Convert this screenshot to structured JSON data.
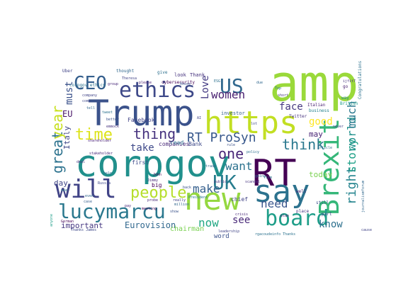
{
  "figure": {
    "type": "word-cloud",
    "background": "#ffffff",
    "palette": "viridis"
  },
  "words": [
    {
      "text": "amp",
      "color": "#9ad93a"
    },
    {
      "text": "Trump",
      "color": "#3b528b"
    },
    {
      "text": "corpgov",
      "color": "#21908c"
    },
    {
      "text": "https",
      "color": "#c2df23"
    },
    {
      "text": "RT",
      "color": "#440154"
    },
    {
      "text": "new",
      "color": "#95d840"
    },
    {
      "text": "say",
      "color": "#2c728e"
    },
    {
      "text": "Brexit",
      "color": "#35b779"
    },
    {
      "text": "will",
      "color": "#414487"
    },
    {
      "text": "lucymarcu",
      "color": "#2a788e"
    },
    {
      "text": "ethics",
      "color": "#3e4989"
    },
    {
      "text": "US",
      "color": "#31688e"
    },
    {
      "text": "CEO",
      "color": "#355f8d"
    },
    {
      "text": "board",
      "color": "#1f9e89"
    },
    {
      "text": "people",
      "color": "#b5de2b"
    },
    {
      "text": "time",
      "color": "#dde318"
    },
    {
      "text": "thing",
      "color": "#46327e"
    },
    {
      "text": "RT ProSyn",
      "color": "#38588c"
    },
    {
      "text": "UK",
      "color": "#287d8e"
    },
    {
      "text": "think",
      "color": "#2a788e"
    },
    {
      "text": "one",
      "color": "#482677"
    },
    {
      "text": "want",
      "color": "#2c728e"
    },
    {
      "text": "women",
      "color": "#481f70"
    },
    {
      "text": "make",
      "color": "#355f8d"
    },
    {
      "text": "now",
      "color": "#22a884"
    },
    {
      "text": "need",
      "color": "#39568c"
    },
    {
      "text": "know",
      "color": "#2d708e"
    },
    {
      "text": "great",
      "color": "#2c728e"
    },
    {
      "text": "year",
      "color": "#c8e020"
    },
    {
      "text": "must",
      "color": "#3b528b"
    },
    {
      "text": "Love",
      "color": "#443a83"
    },
    {
      "text": "take",
      "color": "#3e4989"
    },
    {
      "text": "face",
      "color": "#453781"
    },
    {
      "text": "see",
      "color": "#482878"
    },
    {
      "text": "good",
      "color": "#fde725"
    },
    {
      "text": "right",
      "color": "#25848e"
    },
    {
      "text": "story",
      "color": "#1fa188"
    },
    {
      "text": "world",
      "color": "#21918c"
    },
    {
      "text": "much",
      "color": "#2a788e"
    },
    {
      "text": "Italy",
      "color": "#3f4788"
    },
    {
      "text": "EU",
      "color": "#481467"
    },
    {
      "text": "day",
      "color": "#404688"
    },
    {
      "text": "may",
      "color": "#482475"
    },
    {
      "text": "today",
      "color": "#7ad151"
    },
    {
      "text": "Eurovision",
      "color": "#31688e"
    },
    {
      "text": "important",
      "color": "#453781"
    },
    {
      "text": "chairman",
      "color": "#7ad151"
    },
    {
      "text": "word",
      "color": "#3b528b"
    },
    {
      "text": "companies",
      "color": "#482878"
    },
    {
      "text": "Bank",
      "color": "#3e4989"
    },
    {
      "text": "read",
      "color": "#2e6e8e"
    },
    {
      "text": "chief",
      "color": "#414487"
    },
    {
      "text": "big",
      "color": "#440154"
    },
    {
      "text": "first",
      "color": "#3e4989"
    },
    {
      "text": "Facebook",
      "color": "#414487"
    },
    {
      "text": "investor",
      "color": "#355f8d"
    },
    {
      "text": "look",
      "color": "#46337e"
    },
    {
      "text": "Thank",
      "color": "#46337e"
    },
    {
      "text": "give",
      "color": "#2d708e"
    },
    {
      "text": "Uber",
      "color": "#414487"
    },
    {
      "text": "thought",
      "color": "#31688e"
    },
    {
      "text": "cybersecurity",
      "color": "#440154"
    },
    {
      "text": "corpgov ethics",
      "color": "#2c728e"
    },
    {
      "text": "Congratulations",
      "color": "#2c728e"
    },
    {
      "text": "Twitter",
      "color": "#46327e"
    },
    {
      "text": "Italian",
      "color": "#481f70"
    },
    {
      "text": "business",
      "color": "#26828e"
    },
    {
      "text": "British",
      "color": "#1f9a8a"
    },
    {
      "text": "way",
      "color": "#23888e"
    },
    {
      "text": "still",
      "color": "#3b528b"
    },
    {
      "text": "well",
      "color": "#482878"
    },
    {
      "text": "part",
      "color": "#3e4989"
    },
    {
      "text": "place",
      "color": "#453781"
    },
    {
      "text": "leadership",
      "color": "#414487"
    },
    {
      "text": "scandal",
      "color": "#46337e"
    },
    {
      "text": "President",
      "color": "#2a788e"
    },
    {
      "text": "million",
      "color": "#31688e"
    },
    {
      "text": "rule",
      "color": "#3b528b"
    },
    {
      "text": "group",
      "color": "#482878"
    },
    {
      "text": "please",
      "color": "#481f70"
    },
    {
      "text": "Russia",
      "color": "#3e4989"
    },
    {
      "text": "really",
      "color": "#414487"
    },
    {
      "text": "public",
      "color": "#46327e"
    },
    {
      "text": "going",
      "color": "#31688e"
    },
    {
      "text": "article",
      "color": "#2d708e"
    },
    {
      "text": "never",
      "color": "#414487"
    },
    {
      "text": "stakeholder",
      "color": "#482878"
    },
    {
      "text": "shareholder",
      "color": "#481f70"
    },
    {
      "text": "better",
      "color": "#3b528b"
    },
    {
      "text": "tweet",
      "color": "#2c728e"
    },
    {
      "text": "even",
      "color": "#31688e"
    },
    {
      "text": "case",
      "color": "#355f8d"
    },
    {
      "text": "use",
      "color": "#2a788e"
    },
    {
      "text": "deal",
      "color": "#46337e"
    },
    {
      "text": "German",
      "color": "#440154"
    },
    {
      "text": "anyone",
      "color": "#1f9e89"
    },
    {
      "text": "come",
      "color": "#3e4989"
    },
    {
      "text": "tell",
      "color": "#31688e"
    },
    {
      "text": "probe",
      "color": "#482878"
    },
    {
      "text": "cause",
      "color": "#414487"
    },
    {
      "text": "rgacoudeinfo Thanks",
      "color": "#2c728e"
    },
    {
      "text": "journalismforum",
      "color": "#31688e"
    },
    {
      "text": "ijfit7",
      "color": "#46337e"
    },
    {
      "text": "go",
      "color": "#481f70"
    },
    {
      "text": "House",
      "color": "#3b528b"
    },
    {
      "text": "Theresa",
      "color": "#414487"
    },
    {
      "text": "ESG",
      "color": "#2d708e"
    },
    {
      "text": "meeting",
      "color": "#440154"
    },
    {
      "text": "crisis",
      "color": "#482878"
    },
    {
      "text": "lot",
      "color": "#3e4989"
    },
    {
      "text": "Top",
      "color": "#2c728e"
    },
    {
      "text": "short",
      "color": "#46337e"
    },
    {
      "text": "due",
      "color": "#31688e"
    },
    {
      "text": "company",
      "color": "#414487"
    },
    {
      "text": "Jimmy",
      "color": "#482878"
    },
    {
      "text": "show",
      "color": "#3b528b"
    },
    {
      "text": "policy",
      "color": "#2d708e"
    },
    {
      "text": "John",
      "color": "#440154"
    },
    {
      "text": "plan",
      "color": "#481f70"
    },
    {
      "text": "firm",
      "color": "#2c728e"
    },
    {
      "text": "trade",
      "color": "#31688e"
    },
    {
      "text": "Thanks James",
      "color": "#3e4989"
    },
    {
      "text": "emmock",
      "color": "#46337e"
    },
    {
      "text": "AI",
      "color": "#414487"
    },
    {
      "text": "pay",
      "color": "#482878"
    },
    {
      "text": "help",
      "color": "#2d708e"
    },
    {
      "text": "back",
      "color": "#3b528b"
    }
  ]
}
